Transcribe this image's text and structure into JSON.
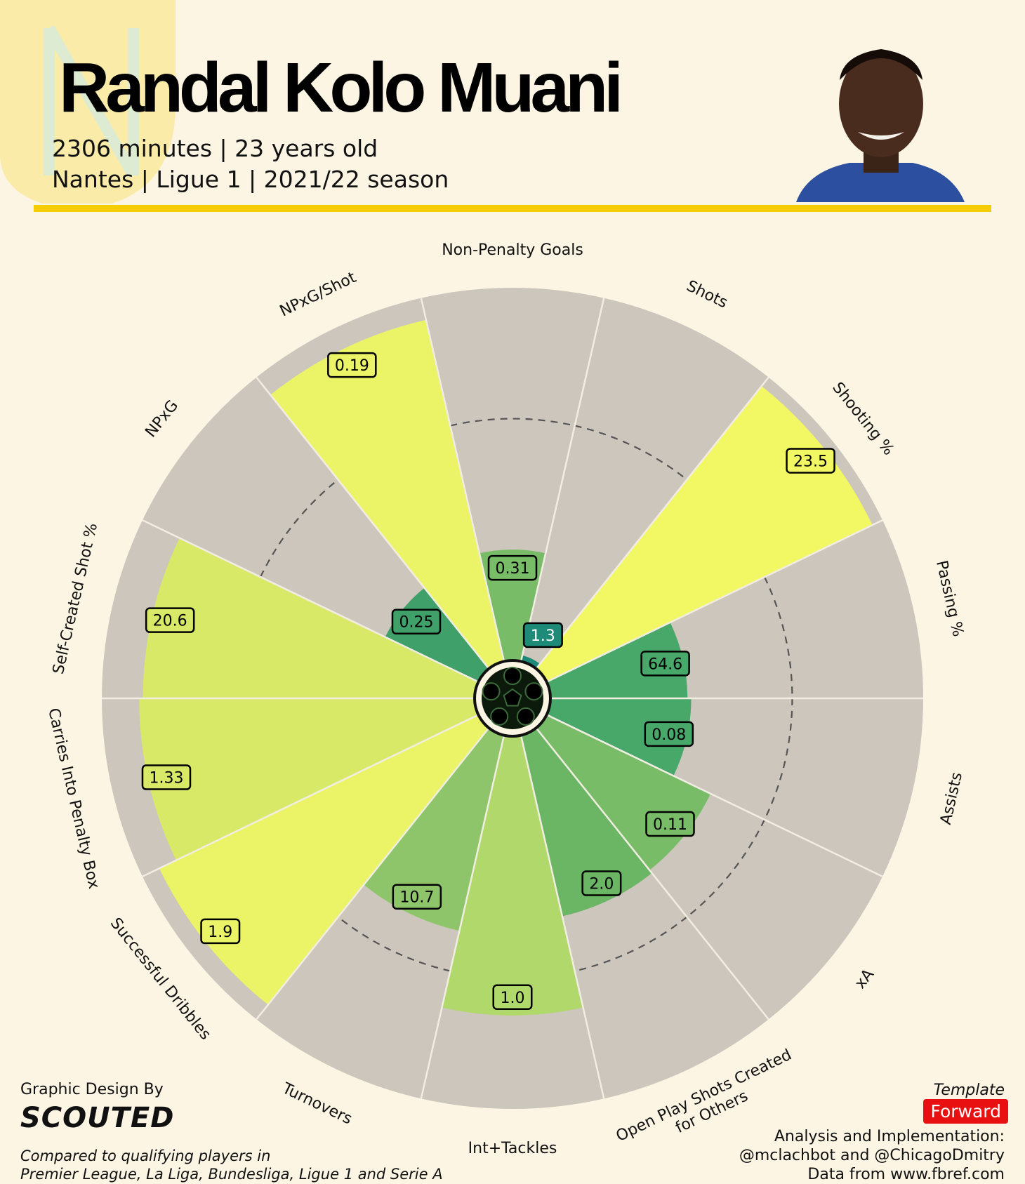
{
  "header": {
    "title": "Randal Kolo Muani",
    "line1": "2306 minutes | 23 years old",
    "line2": "Nantes | Ligue 1 | 2021/22 season"
  },
  "footer": {
    "design_by": "Graphic Design By",
    "brand": "SCOUTED",
    "compared_line1": "Compared to qualifying players in",
    "compared_line2": "Premier League, La Liga, Bundesliga, Ligue 1 and Serie A",
    "template_label": "Template",
    "template_value": "Forward",
    "credit_line1": "Analysis and Implementation:",
    "credit_line2": "@mclachbot and @ChicagoDmitry",
    "credit_line3": "Data from www.fbref.com"
  },
  "chart_data": {
    "type": "pizza",
    "range": [
      0,
      100
    ],
    "reference_ring": 65,
    "colors": {
      "background_slice": "#cdc6bc",
      "dashed_ring": "#555555"
    },
    "segments": [
      {
        "label": "Non-Penalty Goals",
        "value_label": "0.31",
        "percentile": 30,
        "color": "#78bc68"
      },
      {
        "label": "Shots",
        "value_label": "1.3",
        "percentile": 2,
        "color": "#1e8a78"
      },
      {
        "label": "Shooting %",
        "value_label": "23.5",
        "percentile": 97,
        "color": "#f2f764"
      },
      {
        "label": "Passing %",
        "value_label": "64.6",
        "percentile": 37,
        "color": "#48a86a"
      },
      {
        "label": "Assists",
        "value_label": "0.08",
        "percentile": 38,
        "color": "#48a86a"
      },
      {
        "label": "xA",
        "value_label": "0.11",
        "percentile": 49,
        "color": "#78bc68"
      },
      {
        "label": "Open Play Shots Created\nfor Others",
        "value_label": "2.0",
        "percentile": 50,
        "color": "#6ab665"
      },
      {
        "label": "Int+Tackles",
        "value_label": "1.0",
        "percentile": 75,
        "color": "#b0d86a"
      },
      {
        "label": "Turnovers",
        "value_label": "10.7",
        "percentile": 54,
        "color": "#8ec56a"
      },
      {
        "label": "Successful Dribbles",
        "value_label": "1.9",
        "percentile": 95,
        "color": "#eaf466"
      },
      {
        "label": "Carries Into Penalty Box",
        "value_label": "1.33",
        "percentile": 90,
        "color": "#d8e968"
      },
      {
        "label": "Self-Created Shot %",
        "value_label": "20.6",
        "percentile": 89,
        "color": "#d8e968"
      },
      {
        "label": "NPxG",
        "value_label": "0.25",
        "percentile": 28,
        "color": "#40a06a"
      },
      {
        "label": "NPxG/Shot",
        "value_label": "0.19",
        "percentile": 94,
        "color": "#eaf466"
      }
    ]
  }
}
